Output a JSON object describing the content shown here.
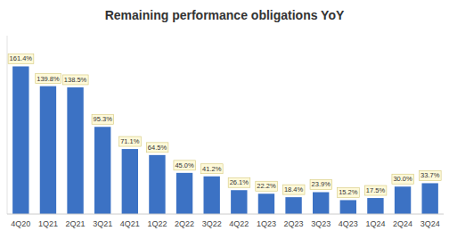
{
  "chart_data": {
    "type": "bar",
    "title": "Remaining performance obligations YoY",
    "categories": [
      "4Q20",
      "1Q21",
      "2Q21",
      "3Q21",
      "4Q21",
      "1Q22",
      "2Q22",
      "3Q22",
      "4Q22",
      "1Q23",
      "2Q23",
      "3Q23",
      "4Q23",
      "1Q24",
      "2Q24",
      "3Q24"
    ],
    "values": [
      161.4,
      139.8,
      138.5,
      95.3,
      71.1,
      64.5,
      45.0,
      41.2,
      26.1,
      22.2,
      18.4,
      23.9,
      15.2,
      17.5,
      30.0,
      33.7
    ],
    "value_labels": [
      "161.4%",
      "139.8%",
      "138.5%",
      "95.3%",
      "71.1%",
      "64.5%",
      "45.0%",
      "41.2%",
      "26.1%",
      "22.2%",
      "18.4%",
      "23.9%",
      "15.2%",
      "17.5%",
      "30.0%",
      "33.7%"
    ],
    "color": "#3c72c4",
    "ylim": [
      0,
      195
    ],
    "grid": false,
    "data_labels": true,
    "tick_labels": "x"
  }
}
